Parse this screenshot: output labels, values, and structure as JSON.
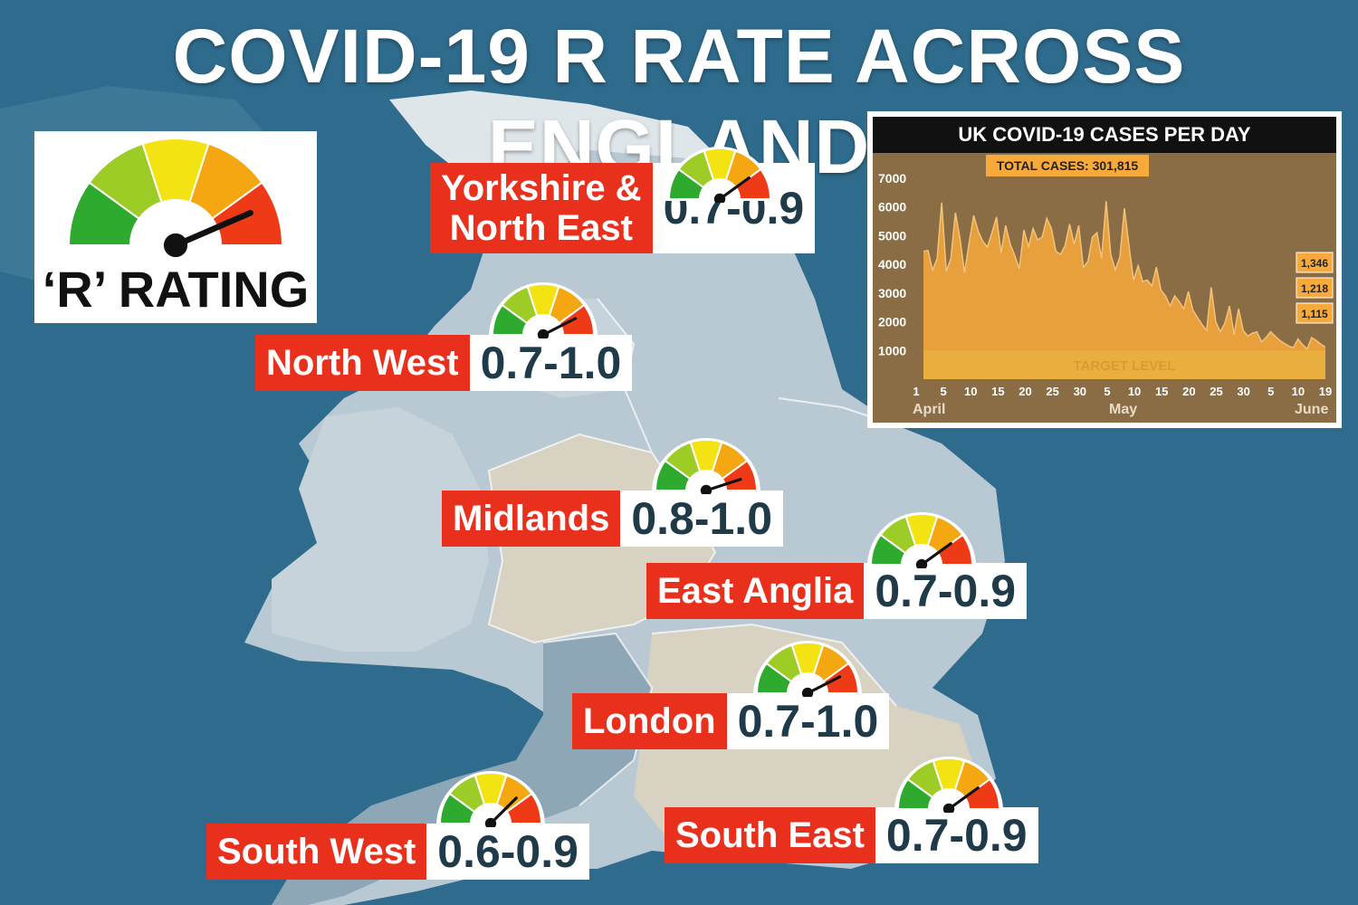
{
  "title": "COVID-19 R RATE ACROSS ENGLAND",
  "legend": {
    "label": "‘R’ RATING",
    "segment_colors": [
      "#2eaa2e",
      "#9ccc25",
      "#f4e313",
      "#f5a712",
      "#ee3a16"
    ]
  },
  "regions": [
    {
      "name_lines": [
        "Yorkshire &",
        "North East"
      ],
      "value": "0.7-0.9",
      "needle": 0.8
    },
    {
      "name_lines": [
        "North West"
      ],
      "value": "0.7-1.0",
      "needle": 0.85
    },
    {
      "name_lines": [
        "Midlands"
      ],
      "value": "0.8-1.0",
      "needle": 0.9
    },
    {
      "name_lines": [
        "East Anglia"
      ],
      "value": "0.7-0.9",
      "needle": 0.8
    },
    {
      "name_lines": [
        "London"
      ],
      "value": "0.7-1.0",
      "needle": 0.85
    },
    {
      "name_lines": [
        "South West"
      ],
      "value": "0.6-0.9",
      "needle": 0.75
    },
    {
      "name_lines": [
        "South East"
      ],
      "value": "0.7-0.9",
      "needle": 0.8
    }
  ],
  "chart_data": {
    "type": "area",
    "title": "UK COVID-19 CASES PER DAY",
    "annotation_total": "TOTAL CASES: 301,815",
    "target_label": "TARGET LEVEL",
    "target_level": 1000,
    "ylim": [
      0,
      7500
    ],
    "yticks": [
      "7000",
      "6000",
      "5000",
      "4000",
      "3000",
      "2000",
      "1000"
    ],
    "xticks": [
      "1",
      "5",
      "10",
      "15",
      "20",
      "25",
      "30",
      "5",
      "10",
      "15",
      "20",
      "25",
      "30",
      "5",
      "10",
      "19"
    ],
    "months": [
      "April",
      "May",
      "June"
    ],
    "last_values_labels": [
      "1,346",
      "1,218",
      "1,115"
    ],
    "values": [
      4450,
      4480,
      3800,
      4200,
      6150,
      3750,
      4200,
      5800,
      4900,
      3700,
      4750,
      5700,
      5150,
      4800,
      4600,
      5100,
      5650,
      4400,
      5350,
      4700,
      4300,
      3850,
      5200,
      4600,
      5250,
      4850,
      4950,
      5600,
      5250,
      4450,
      4350,
      4650,
      5400,
      4700,
      5350,
      3900,
      4100,
      4950,
      5100,
      4200,
      6200,
      4350,
      3800,
      4250,
      5950,
      4650,
      3450,
      3950,
      3400,
      3450,
      3250,
      3900,
      3100,
      2900,
      2550,
      2900,
      2700,
      2450,
      3050,
      2400,
      2150,
      1900,
      1700,
      3200,
      2000,
      1650,
      1950,
      2550,
      1550,
      2450,
      1700,
      1500,
      1600,
      1650,
      1300,
      1450,
      1650,
      1500,
      1350,
      1250,
      1150,
      1100,
      1400,
      1200,
      1050,
      1450,
      1346,
      1218,
      1115
    ],
    "series_color": "#f7a93a"
  }
}
